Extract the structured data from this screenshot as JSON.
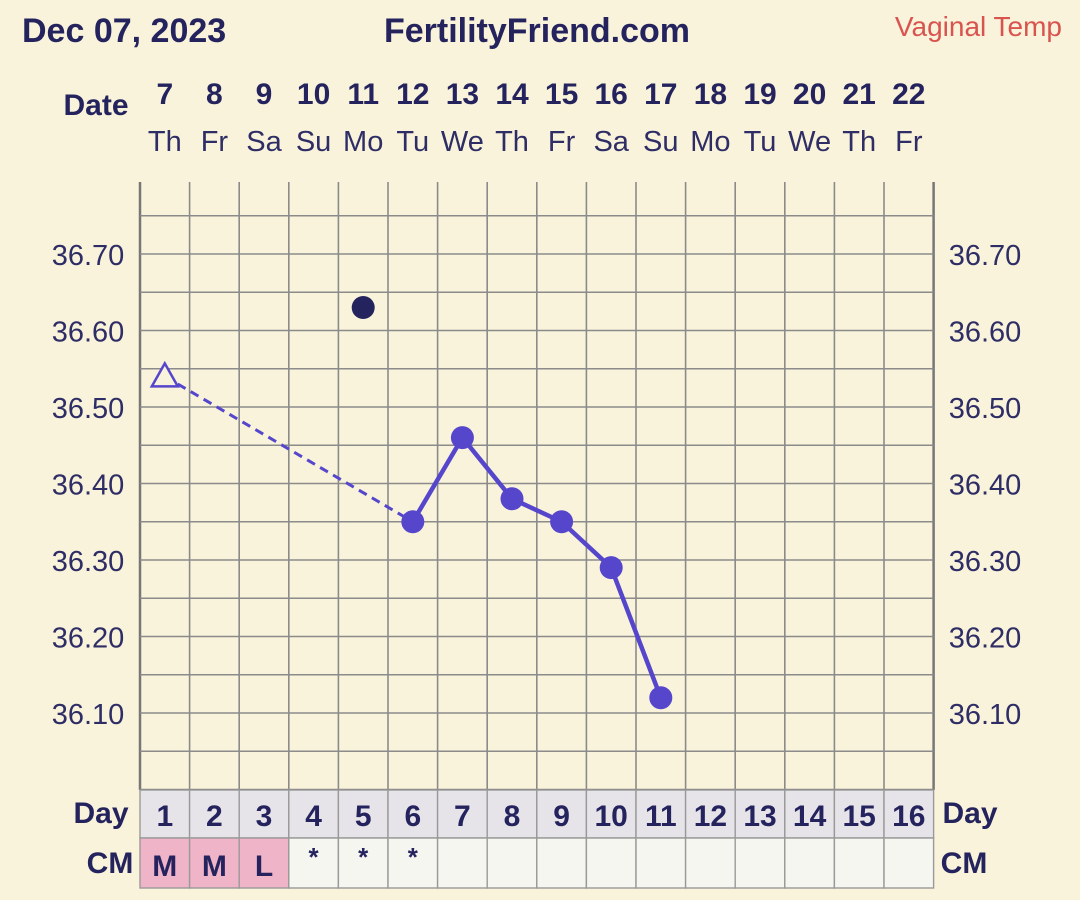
{
  "header": {
    "date": "Dec 07, 2023",
    "site": "FertilityFriend.com",
    "temp_method": "Vaginal Temp"
  },
  "labels": {
    "date": "Date",
    "day": "Day",
    "cm": "CM"
  },
  "colors": {
    "background": "#f8f3da",
    "grid": "#8b8b8b",
    "line": "#5546cc",
    "outlier": "#25235e",
    "heading": "#25235e",
    "temp_method": "#d9534f",
    "menstrual_cell": "#f0b4c9",
    "table_row": "#e6e4e8",
    "cm_row": "#f6f6f0"
  },
  "chart_data": {
    "type": "line",
    "title": "",
    "xlabel": "",
    "ylabel": "",
    "dates": [
      "7",
      "8",
      "9",
      "10",
      "11",
      "12",
      "13",
      "14",
      "15",
      "16",
      "17",
      "18",
      "19",
      "20",
      "21",
      "22"
    ],
    "weekdays": [
      "Th",
      "Fr",
      "Sa",
      "Su",
      "Mo",
      "Tu",
      "We",
      "Th",
      "Fr",
      "Sa",
      "Su",
      "Mo",
      "Tu",
      "We",
      "Th",
      "Fr"
    ],
    "cycle_days": [
      "1",
      "2",
      "3",
      "4",
      "5",
      "6",
      "7",
      "8",
      "9",
      "10",
      "11",
      "12",
      "13",
      "14",
      "15",
      "16"
    ],
    "cm": [
      "M",
      "M",
      "L",
      "*",
      "*",
      "*",
      "",
      "",
      "",
      "",
      "",
      "",
      "",
      "",
      "",
      ""
    ],
    "ylim": [
      36.0,
      36.8
    ],
    "yticks": [
      36.1,
      36.2,
      36.3,
      36.4,
      36.5,
      36.6,
      36.7
    ],
    "ytick_labels": [
      "36.10",
      "36.20",
      "36.30",
      "36.40",
      "36.50",
      "36.60",
      "36.70"
    ],
    "series": [
      {
        "temperatures": [
          36.54,
          null,
          null,
          null,
          36.63,
          36.35,
          36.46,
          36.38,
          36.35,
          36.29,
          36.12,
          null,
          null,
          null,
          null,
          null
        ]
      }
    ],
    "open_points": [
      1
    ],
    "discarded_points": [
      5
    ],
    "dashed_segment": [
      1,
      6
    ],
    "grid": true
  }
}
